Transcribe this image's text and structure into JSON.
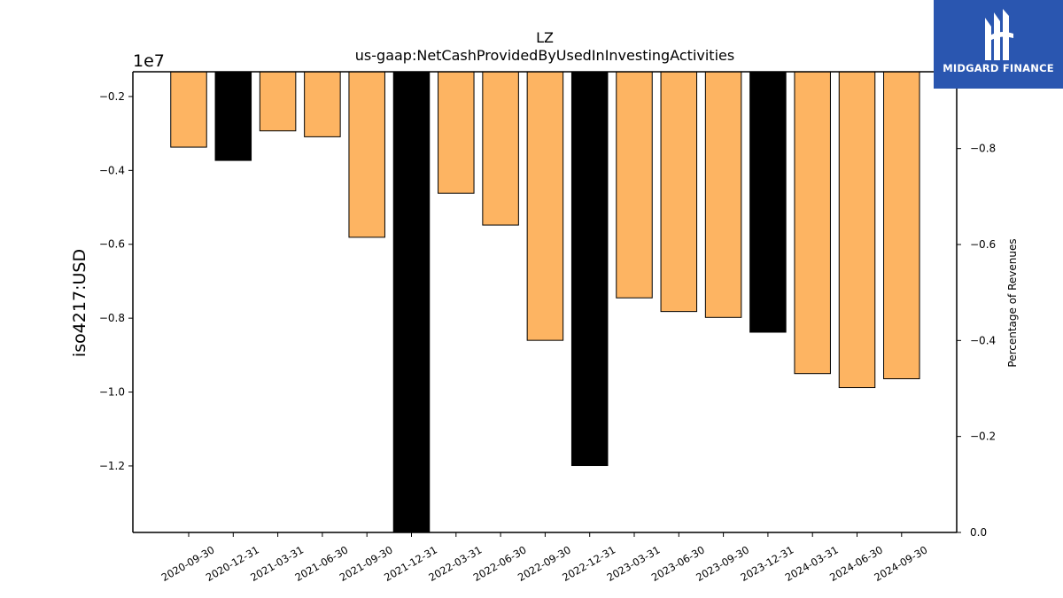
{
  "chart_data": {
    "type": "bar",
    "title": "LZ",
    "subtitle": "us-gaap:NetCashProvidedByUsedInInvestingActivities",
    "ylabel": "iso4217:USD",
    "y_offset_label": "1e7",
    "y2label": "Percentage of Revenues",
    "categories": [
      "2020-09-30",
      "2020-12-31",
      "2021-03-31",
      "2021-06-30",
      "2021-09-30",
      "2021-12-31",
      "2022-03-31",
      "2022-06-30",
      "2022-09-30",
      "2022-12-31",
      "2023-03-31",
      "2023-06-30",
      "2023-09-30",
      "2023-12-31",
      "2024-03-31",
      "2024-06-30",
      "2024-09-30"
    ],
    "values": [
      -3370000,
      -3730000,
      -2930000,
      -3090000,
      -5810000,
      -13800000,
      -4620000,
      -5480000,
      -8600000,
      -11990000,
      -7450000,
      -7820000,
      -7980000,
      -8380000,
      -9500000,
      -9880000,
      -9640000
    ],
    "bar_colors": [
      "#fdb462",
      "#000000",
      "#fdb462",
      "#fdb462",
      "#fdb462",
      "#000000",
      "#fdb462",
      "#fdb462",
      "#fdb462",
      "#000000",
      "#fdb462",
      "#fdb462",
      "#fdb462",
      "#000000",
      "#fdb462",
      "#fdb462",
      "#fdb462"
    ],
    "ylim": [
      -13800000,
      -1330000
    ],
    "yticks": [
      -2000000,
      -4000000,
      -6000000,
      -8000000,
      -10000000,
      -12000000
    ],
    "ytick_labels": [
      "−0.2",
      "−0.4",
      "−0.6",
      "−0.8",
      "−1.0",
      "−1.2"
    ],
    "y2lim": [
      0,
      -0.96
    ],
    "y2ticks": [
      -0.8,
      -0.6,
      -0.4,
      -0.2,
      0.0
    ],
    "y2tick_labels": [
      "−0.8",
      "−0.6",
      "−0.4",
      "−0.2",
      "0.0"
    ],
    "grid": false
  },
  "logo": {
    "text": "MIDGARD FINANCE"
  }
}
